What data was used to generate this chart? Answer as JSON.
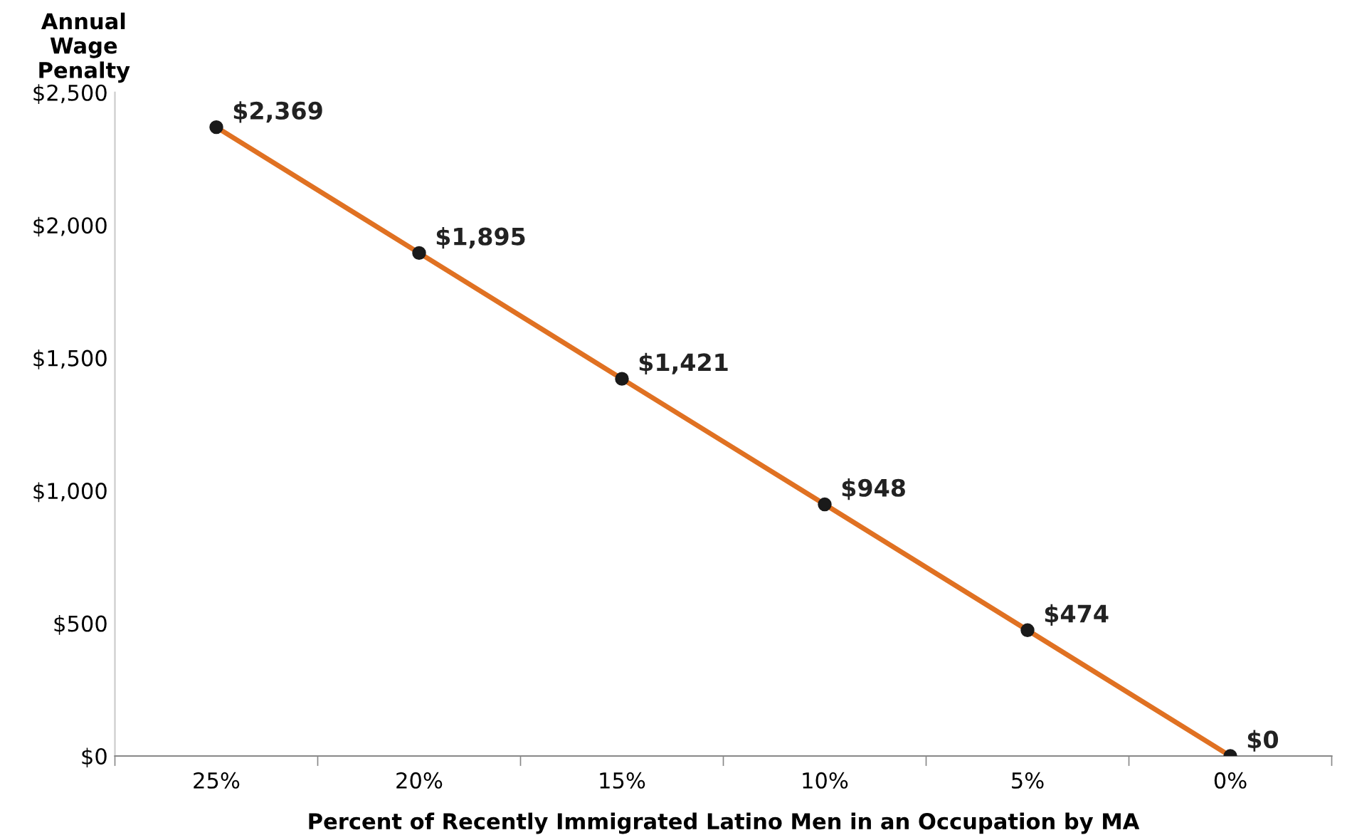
{
  "chart_data": {
    "type": "line",
    "xlabel": "Percent of Recently Immigrated Latino Men in an Occupation by MA",
    "ylabel": "Annual\nWage\nPenalty",
    "categories": [
      "25%",
      "20%",
      "15%",
      "10%",
      "5%",
      "0%"
    ],
    "series": [
      {
        "color": "#e07122",
        "values": [
          2369,
          1895,
          1421,
          948,
          474,
          0
        ],
        "value_labels": [
          "$2,369",
          "$1,895",
          "$1,421",
          "$948",
          "$474",
          "$0"
        ]
      }
    ],
    "ylim": [
      0,
      2500
    ],
    "yticks": [
      {
        "value": 0,
        "label": "$0"
      },
      {
        "value": 500,
        "label": "$500"
      },
      {
        "value": 1000,
        "label": "$1,000"
      },
      {
        "value": 1500,
        "label": "$1,500"
      },
      {
        "value": 2000,
        "label": "$2,000"
      },
      {
        "value": 2500,
        "label": "$2,500"
      }
    ],
    "marker": "circle",
    "line_style": "solid",
    "grid": false,
    "legend": false
  }
}
